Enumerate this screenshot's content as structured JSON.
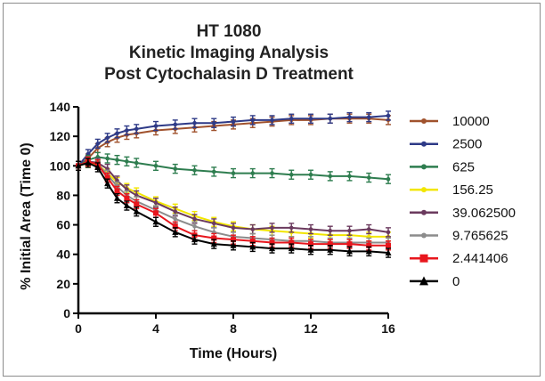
{
  "chart_data": {
    "type": "line",
    "title": [
      "HT 1080",
      "Kinetic Imaging Analysis",
      "Post Cytochalasin D Treatment"
    ],
    "xlabel": "Time (Hours)",
    "ylabel": "% Initial Area (Time 0)",
    "xlim": [
      0,
      16
    ],
    "ylim": [
      0,
      140
    ],
    "xticks": [
      0,
      4,
      8,
      12,
      16
    ],
    "yticks": [
      0,
      20,
      40,
      60,
      80,
      100,
      120,
      140
    ],
    "grid": false,
    "legend": "right",
    "series": [
      {
        "name": "10000",
        "color": "#a0522d",
        "marker": "dot",
        "x": [
          0,
          0.5,
          1,
          1.5,
          2,
          2.5,
          3,
          4,
          5,
          6,
          7,
          8,
          9,
          10,
          11,
          12,
          13,
          14,
          15,
          16
        ],
        "y": [
          100,
          105,
          112,
          116,
          119,
          121,
          122,
          124,
          125,
          126,
          127,
          128,
          129,
          130,
          131,
          131,
          132,
          132,
          132,
          131
        ]
      },
      {
        "name": "2500",
        "color": "#2e3a87",
        "marker": "dot",
        "x": [
          0,
          0.5,
          1,
          1.5,
          2,
          2.5,
          3,
          4,
          5,
          6,
          7,
          8,
          9,
          10,
          11,
          12,
          13,
          14,
          15,
          16
        ],
        "y": [
          100,
          108,
          115,
          119,
          122,
          124,
          125,
          127,
          128,
          129,
          129,
          130,
          131,
          131,
          132,
          132,
          132,
          133,
          133,
          134
        ]
      },
      {
        "name": "625",
        "color": "#2e7d4f",
        "marker": "dot",
        "x": [
          0,
          0.5,
          1,
          1.5,
          2,
          2.5,
          3,
          4,
          5,
          6,
          7,
          8,
          9,
          10,
          11,
          12,
          13,
          14,
          15,
          16
        ],
        "y": [
          100,
          104,
          106,
          105,
          104,
          103,
          102,
          100,
          98,
          97,
          96,
          95,
          95,
          95,
          94,
          94,
          93,
          93,
          92,
          91
        ]
      },
      {
        "name": "156.25",
        "color": "#f2e600",
        "marker": "dot",
        "x": [
          0,
          0.5,
          1,
          1.5,
          2,
          2.5,
          3,
          4,
          5,
          6,
          7,
          8,
          9,
          10,
          11,
          12,
          13,
          14,
          15,
          16
        ],
        "y": [
          100,
          102,
          101,
          95,
          89,
          85,
          82,
          76,
          71,
          66,
          62,
          59,
          57,
          56,
          55,
          54,
          53,
          53,
          52,
          52
        ]
      },
      {
        "name": "39.062500",
        "color": "#6b3a5e",
        "marker": "dot",
        "x": [
          0,
          0.5,
          1,
          1.5,
          2,
          2.5,
          3,
          4,
          5,
          6,
          7,
          8,
          9,
          10,
          11,
          12,
          13,
          14,
          15,
          16
        ],
        "y": [
          100,
          103,
          102,
          98,
          90,
          84,
          80,
          75,
          69,
          64,
          61,
          58,
          57,
          58,
          58,
          57,
          56,
          56,
          57,
          55
        ]
      },
      {
        "name": "9.765625",
        "color": "#8c8c8c",
        "marker": "dot",
        "x": [
          0,
          0.5,
          1,
          1.5,
          2,
          2.5,
          3,
          4,
          5,
          6,
          7,
          8,
          9,
          10,
          11,
          12,
          13,
          14,
          15,
          16
        ],
        "y": [
          100,
          103,
          101,
          94,
          86,
          80,
          76,
          70,
          64,
          59,
          55,
          52,
          51,
          50,
          49,
          49,
          48,
          48,
          48,
          48
        ]
      },
      {
        "name": "2.441406",
        "color": "#e8161d",
        "marker": "square",
        "x": [
          0,
          0.5,
          1,
          1.5,
          2,
          2.5,
          3,
          4,
          5,
          6,
          7,
          8,
          9,
          10,
          11,
          12,
          13,
          14,
          15,
          16
        ],
        "y": [
          100,
          103,
          101,
          92,
          83,
          78,
          74,
          68,
          59,
          53,
          51,
          50,
          49,
          48,
          48,
          47,
          47,
          47,
          46,
          46
        ]
      },
      {
        "name": "0",
        "color": "#000000",
        "marker": "triangle",
        "x": [
          0,
          0.5,
          1,
          1.5,
          2,
          2.5,
          3,
          4,
          5,
          6,
          7,
          8,
          9,
          10,
          11,
          12,
          13,
          14,
          15,
          16
        ],
        "y": [
          100,
          102,
          99,
          88,
          78,
          73,
          69,
          62,
          55,
          50,
          47,
          46,
          45,
          44,
          44,
          43,
          43,
          42,
          42,
          41
        ]
      }
    ]
  }
}
